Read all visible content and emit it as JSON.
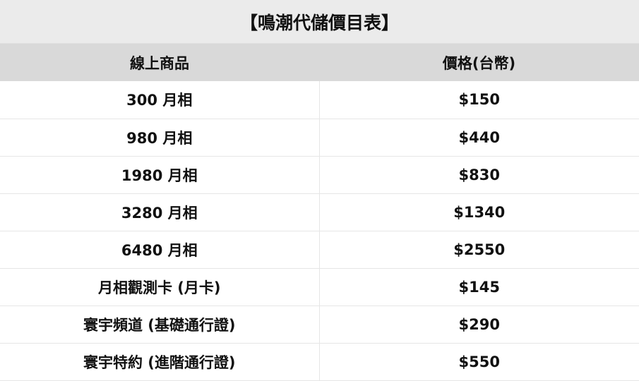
{
  "title": "【鳴潮代儲價目表】",
  "headers": {
    "product": "線上商品",
    "price": "價格(台幣)"
  },
  "rows": [
    {
      "product": "300 月相",
      "price": "$150"
    },
    {
      "product": "980 月相",
      "price": "$440"
    },
    {
      "product": "1980 月相",
      "price": "$830"
    },
    {
      "product": "3280 月相",
      "price": "$1340"
    },
    {
      "product": "6480 月相",
      "price": "$2550"
    },
    {
      "product": "月相觀測卡 (月卡)",
      "price": "$145"
    },
    {
      "product": "寰宇頻道 (基礎通行證)",
      "price": "$290"
    },
    {
      "product": "寰宇特約 (進階通行證)",
      "price": "$550"
    }
  ]
}
